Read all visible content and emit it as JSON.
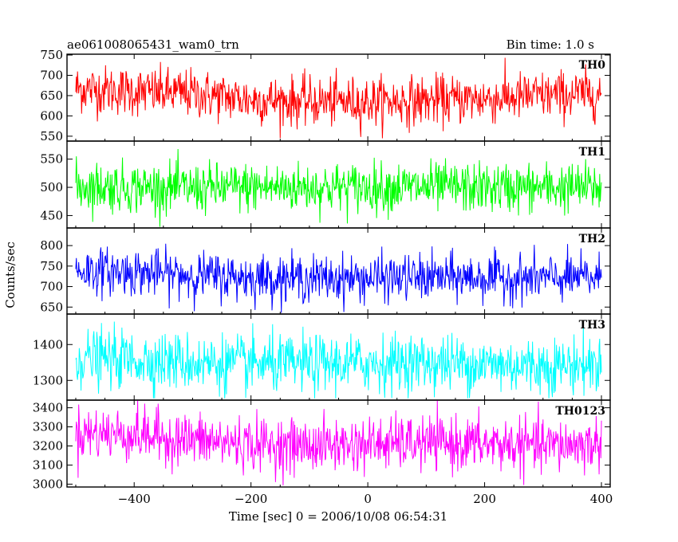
{
  "header": {
    "title": "ae061008065431_wam0_trn",
    "bin_time": "Bin time: 1.0 s"
  },
  "chart_data": {
    "type": "line",
    "title": "ae061008065431_wam0_trn",
    "xlabel": "Time [sec] 0 = 2006/10/08 06:54:31",
    "ylabel": "Counts/sec",
    "xlim": [
      -515,
      415
    ],
    "x_start": -500,
    "x_end": 400,
    "x_step": 1,
    "xticks": [
      -400,
      -200,
      0,
      200,
      400
    ],
    "xtick_labels": [
      "−400",
      "−200",
      "0",
      "200",
      "400"
    ],
    "grid": false,
    "panels": [
      {
        "name": "TH0",
        "color": "#ff0000",
        "ylim": [
          538,
          752
        ],
        "yticks": [
          550,
          600,
          650,
          700,
          750
        ],
        "ytick_labels": [
          "550",
          "600",
          "650",
          "700",
          "750"
        ],
        "trend_x": [
          -500,
          -400,
          -300,
          -200,
          -100,
          0,
          100,
          200,
          300,
          400
        ],
        "trend_y": [
          668,
          660,
          655,
          640,
          635,
          635,
          638,
          642,
          650,
          655
        ],
        "noise_sd": 30,
        "ymin_obs": 545,
        "ymax_obs": 752
      },
      {
        "name": "TH1",
        "color": "#00ff00",
        "ylim": [
          428,
          582
        ],
        "yticks": [
          450,
          500,
          550
        ],
        "ytick_labels": [
          "450",
          "500",
          "550"
        ],
        "trend_x": [
          -500,
          -400,
          -300,
          -200,
          -100,
          0,
          100,
          200,
          300,
          400
        ],
        "trend_y": [
          502,
          500,
          498,
          500,
          500,
          500,
          500,
          499,
          499,
          500
        ],
        "noise_sd": 22,
        "ymin_obs": 430,
        "ymax_obs": 580
      },
      {
        "name": "TH2",
        "color": "#0000ff",
        "ylim": [
          633,
          843
        ],
        "yticks": [
          650,
          700,
          750,
          800
        ],
        "ytick_labels": [
          "650",
          "700",
          "750",
          "800"
        ],
        "trend_x": [
          -500,
          -400,
          -300,
          -200,
          -100,
          0,
          100,
          200,
          300,
          400
        ],
        "trend_y": [
          740,
          735,
          728,
          722,
          720,
          720,
          722,
          722,
          720,
          722
        ],
        "noise_sd": 28,
        "ymin_obs": 636,
        "ymax_obs": 840
      },
      {
        "name": "TH3",
        "color": "#00ffff",
        "ylim": [
          1245,
          1485
        ],
        "yticks": [
          1300,
          1400
        ],
        "ytick_labels": [
          "1300",
          "1400"
        ],
        "trend_x": [
          -500,
          -400,
          -300,
          -200,
          -100,
          0,
          100,
          200,
          300,
          400
        ],
        "trend_y": [
          1362,
          1358,
          1350,
          1345,
          1345,
          1348,
          1350,
          1345,
          1340,
          1345
        ],
        "noise_sd": 40,
        "ymin_obs": 1250,
        "ymax_obs": 1482
      },
      {
        "name": "TH0123",
        "color": "#ff00ff",
        "ylim": [
          2985,
          3440
        ],
        "yticks": [
          3000,
          3100,
          3200,
          3300,
          3400
        ],
        "ytick_labels": [
          "3000",
          "3100",
          "3200",
          "3300",
          "3400"
        ],
        "trend_x": [
          -500,
          -400,
          -300,
          -200,
          -100,
          0,
          100,
          200,
          300,
          400
        ],
        "trend_y": [
          3270,
          3260,
          3230,
          3210,
          3200,
          3210,
          3215,
          3210,
          3200,
          3210
        ],
        "noise_sd": 70,
        "ymin_obs": 2990,
        "ymax_obs": 3440
      }
    ]
  }
}
